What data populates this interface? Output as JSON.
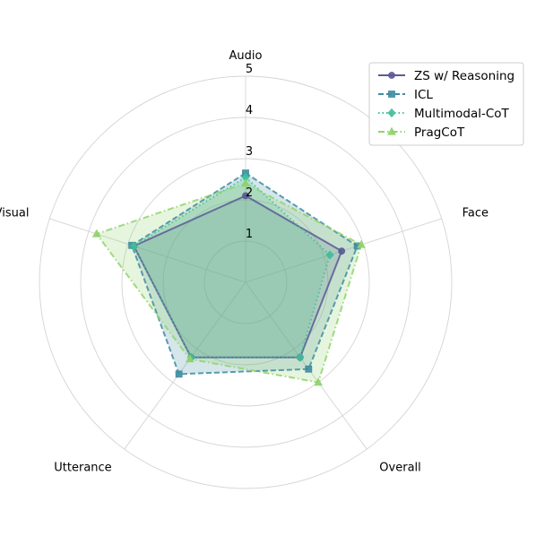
{
  "chart_data": {
    "type": "radar",
    "axes": [
      "Audio",
      "Face",
      "Overall",
      "Utterance",
      "Visual"
    ],
    "rlim": [
      0,
      5
    ],
    "rticks": [
      1,
      2,
      3,
      4,
      5
    ],
    "rtick_labels": [
      "1",
      "2",
      "3",
      "4",
      "5"
    ],
    "grid": true,
    "legend_position": "top-right",
    "series": [
      {
        "name": "ZS w/ Reasoning",
        "values": [
          2.1,
          2.45,
          2.25,
          2.25,
          2.85
        ],
        "color": "#5b5a95",
        "marker": "circle",
        "dash": "solid"
      },
      {
        "name": "ICL",
        "values": [
          2.65,
          2.85,
          2.6,
          2.75,
          2.9
        ],
        "color": "#3f8ca0",
        "marker": "square",
        "dash": "dashed"
      },
      {
        "name": "Multimodal-CoT",
        "values": [
          2.55,
          2.15,
          2.25,
          2.25,
          2.85
        ],
        "color": "#3fbf99",
        "marker": "diamond",
        "dash": "dotted"
      },
      {
        "name": "PragCoT",
        "values": [
          2.4,
          2.95,
          3.0,
          2.3,
          3.8
        ],
        "color": "#8fd36b",
        "marker": "triangle",
        "dash": "dashdot"
      }
    ]
  }
}
